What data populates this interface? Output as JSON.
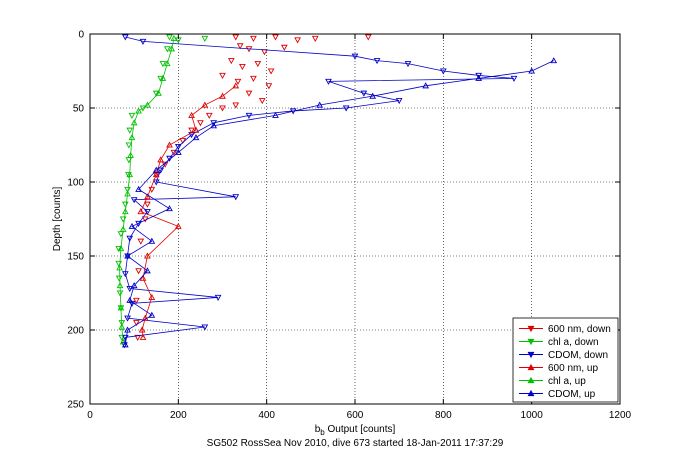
{
  "chart_data": {
    "type": "scatter",
    "xlabel_main": "b",
    "xlabel_sub": "b",
    "xlabel_rest": " Output [counts]",
    "ylabel": "Depth [counts]",
    "caption": "SG502 RossSea Nov 2010, dive 673 started 18-Jan-2011 17:37:29",
    "xlim": [
      0,
      1200
    ],
    "ylim": [
      0,
      250
    ],
    "y_reversed": true,
    "grid": true,
    "xticks": [
      0,
      200,
      400,
      600,
      800,
      1000,
      1200
    ],
    "yticks": [
      0,
      50,
      100,
      150,
      200,
      250
    ],
    "legend_position": "bottom-right",
    "series": [
      {
        "name": "600 nm, down",
        "color": "#e00000",
        "marker": "triangle-down",
        "line": false,
        "points": [
          [
            330,
            2
          ],
          [
            370,
            3
          ],
          [
            420,
            2
          ],
          [
            470,
            4
          ],
          [
            510,
            3
          ],
          [
            630,
            2
          ],
          [
            340,
            8
          ],
          [
            360,
            10
          ],
          [
            395,
            12
          ],
          [
            440,
            9
          ],
          [
            320,
            18
          ],
          [
            345,
            22
          ],
          [
            380,
            20
          ],
          [
            410,
            25
          ],
          [
            300,
            28
          ],
          [
            335,
            32
          ],
          [
            370,
            30
          ],
          [
            405,
            35
          ],
          [
            360,
            40
          ],
          [
            390,
            45
          ],
          [
            330,
            48
          ],
          [
            300,
            50
          ],
          [
            270,
            55
          ],
          [
            250,
            60
          ],
          [
            230,
            65
          ],
          [
            210,
            72
          ],
          [
            190,
            80
          ],
          [
            170,
            88
          ],
          [
            150,
            95
          ],
          [
            140,
            105
          ],
          [
            130,
            115
          ],
          [
            125,
            125
          ],
          [
            115,
            140
          ],
          [
            110,
            160
          ],
          [
            105,
            180
          ],
          [
            105,
            195
          ],
          [
            108,
            205
          ]
        ]
      },
      {
        "name": "chl a, down",
        "color": "#00c000",
        "marker": "triangle-down",
        "line": false,
        "points": [
          [
            180,
            2
          ],
          [
            200,
            4
          ],
          [
            260,
            3
          ],
          [
            175,
            10
          ],
          [
            165,
            20
          ],
          [
            160,
            30
          ],
          [
            150,
            40
          ],
          [
            120,
            50
          ],
          [
            95,
            55
          ],
          [
            90,
            65
          ],
          [
            88,
            75
          ],
          [
            88,
            85
          ],
          [
            87,
            95
          ],
          [
            85,
            105
          ],
          [
            80,
            115
          ],
          [
            75,
            125
          ],
          [
            70,
            135
          ],
          [
            65,
            145
          ],
          [
            65,
            155
          ],
          [
            66,
            165
          ],
          [
            68,
            175
          ],
          [
            70,
            185
          ],
          [
            72,
            195
          ],
          [
            72,
            205
          ]
        ]
      },
      {
        "name": "CDOM, down",
        "color": "#0000c8",
        "marker": "triangle-down",
        "line": true,
        "points": [
          [
            80,
            2
          ],
          [
            120,
            5
          ],
          [
            600,
            15
          ],
          [
            650,
            18
          ],
          [
            720,
            20
          ],
          [
            800,
            25
          ],
          [
            880,
            28
          ],
          [
            960,
            30
          ],
          [
            540,
            32
          ],
          [
            620,
            40
          ],
          [
            700,
            45
          ],
          [
            580,
            50
          ],
          [
            460,
            52
          ],
          [
            360,
            55
          ],
          [
            280,
            60
          ],
          [
            230,
            68
          ],
          [
            200,
            76
          ],
          [
            180,
            84
          ],
          [
            160,
            92
          ],
          [
            150,
            100
          ],
          [
            330,
            110
          ],
          [
            100,
            112
          ],
          [
            130,
            120
          ],
          [
            110,
            128
          ],
          [
            90,
            138
          ],
          [
            85,
            150
          ],
          [
            80,
            162
          ],
          [
            90,
            172
          ],
          [
            290,
            178
          ],
          [
            95,
            182
          ],
          [
            85,
            192
          ],
          [
            260,
            198
          ],
          [
            80,
            205
          ],
          [
            78,
            210
          ]
        ]
      },
      {
        "name": "600 nm, up",
        "color": "#e00000",
        "marker": "triangle-up",
        "line": true,
        "points": [
          [
            120,
            205
          ],
          [
            118,
            200
          ],
          [
            125,
            192
          ],
          [
            140,
            178
          ],
          [
            120,
            165
          ],
          [
            130,
            150
          ],
          [
            200,
            130
          ],
          [
            115,
            120
          ],
          [
            130,
            110
          ],
          [
            150,
            95
          ],
          [
            160,
            85
          ],
          [
            180,
            75
          ],
          [
            240,
            65
          ],
          [
            230,
            55
          ],
          [
            260,
            48
          ],
          [
            300,
            42
          ],
          [
            330,
            35
          ]
        ]
      },
      {
        "name": "chl a, up",
        "color": "#00c000",
        "marker": "triangle-up",
        "line": true,
        "points": [
          [
            75,
            208
          ],
          [
            72,
            198
          ],
          [
            70,
            185
          ],
          [
            68,
            170
          ],
          [
            67,
            158
          ],
          [
            70,
            145
          ],
          [
            75,
            132
          ],
          [
            80,
            120
          ],
          [
            85,
            108
          ],
          [
            90,
            95
          ],
          [
            92,
            82
          ],
          [
            95,
            70
          ],
          [
            100,
            60
          ],
          [
            110,
            52
          ],
          [
            130,
            48
          ],
          [
            155,
            40
          ],
          [
            165,
            30
          ],
          [
            175,
            20
          ],
          [
            185,
            10
          ],
          [
            190,
            3
          ]
        ]
      },
      {
        "name": "CDOM, up",
        "color": "#0000c8",
        "marker": "triangle-up",
        "line": true,
        "points": [
          [
            80,
            210
          ],
          [
            85,
            200
          ],
          [
            140,
            190
          ],
          [
            90,
            180
          ],
          [
            100,
            170
          ],
          [
            130,
            160
          ],
          [
            85,
            150
          ],
          [
            140,
            140
          ],
          [
            95,
            130
          ],
          [
            180,
            118
          ],
          [
            110,
            105
          ],
          [
            150,
            92
          ],
          [
            200,
            80
          ],
          [
            240,
            70
          ],
          [
            280,
            62
          ],
          [
            420,
            55
          ],
          [
            520,
            48
          ],
          [
            640,
            42
          ],
          [
            760,
            35
          ],
          [
            880,
            30
          ],
          [
            1000,
            25
          ],
          [
            1050,
            18
          ]
        ]
      }
    ]
  }
}
